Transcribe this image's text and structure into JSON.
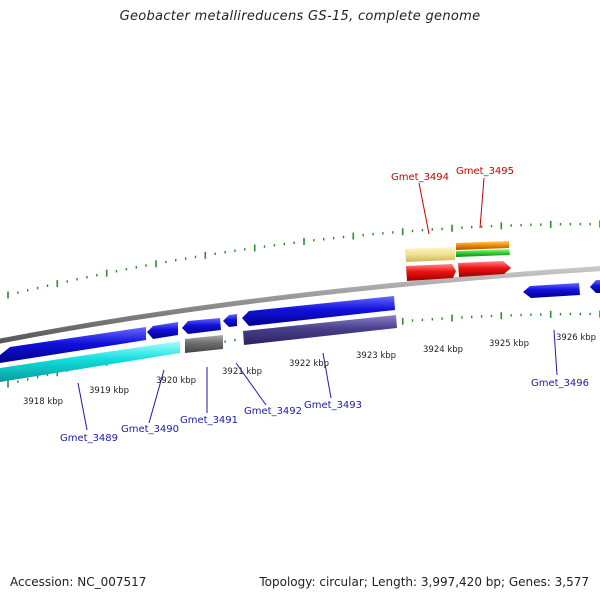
{
  "title": "Geobacter metallireducens GS-15, complete genome",
  "colors": {
    "backbone": "#8c8c8c",
    "tick": "#2e8b2e",
    "gene_label_forward": "#cc0000",
    "gene_label_reverse": "#1a1aaa",
    "kbp_label": "#222222",
    "blue": "#1111dd",
    "cyan": "#11dddd",
    "gray": "#6e6e6e",
    "purple": "#4a3f8a",
    "red": "#ee1111",
    "yellow": "#f0e090",
    "orange": "#ee8800",
    "green": "#33cc33"
  },
  "kbp_labels": [
    "3918 kbp",
    "3919 kbp",
    "3920 kbp",
    "3921 kbp",
    "3922 kbp",
    "3923 kbp",
    "3924 kbp",
    "3925 kbp",
    "3926 kbp"
  ],
  "gene_labels_reverse": [
    "Gmet_3489",
    "Gmet_3490",
    "Gmet_3491",
    "Gmet_3492",
    "Gmet_3493",
    "Gmet_3496"
  ],
  "gene_labels_forward": [
    "Gmet_3494",
    "Gmet_3495"
  ],
  "footer": {
    "accession": "Accession: NC_007517",
    "summary": "Topology: circular; Length: 3,997,420 bp; Genes: 3,577"
  }
}
